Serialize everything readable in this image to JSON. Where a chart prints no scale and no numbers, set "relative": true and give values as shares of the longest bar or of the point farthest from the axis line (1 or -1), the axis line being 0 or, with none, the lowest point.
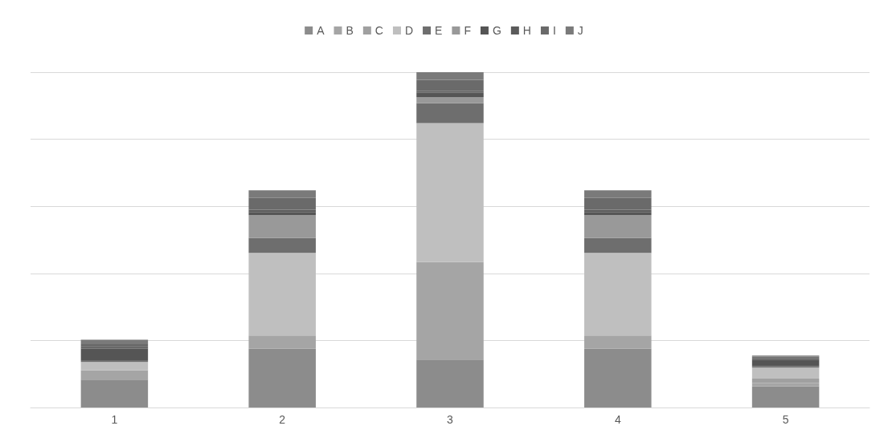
{
  "chart_data": {
    "type": "bar",
    "stacked": true,
    "relative": true,
    "grid": "y",
    "legend": "top",
    "categories": [
      "1",
      "2",
      "3",
      "4",
      "5"
    ],
    "series": [
      {
        "name": "A",
        "color": "#8c8c8c",
        "values": [
          0.083,
          0.175,
          0.143,
          0.175,
          0.063
        ]
      },
      {
        "name": "B",
        "color": "#a5a5a5",
        "values": [
          0.028,
          0.04,
          0.291,
          0.04,
          0.01
        ]
      },
      {
        "name": "C",
        "color": "#a0a0a0",
        "values": [
          0,
          0,
          0,
          0,
          0.013
        ]
      },
      {
        "name": "D",
        "color": "#bfbfbf",
        "values": [
          0.025,
          0.246,
          0.414,
          0.246,
          0.033
        ]
      },
      {
        "name": "E",
        "color": "#6e6e6e",
        "values": [
          0.005,
          0.045,
          0.06,
          0.045,
          0.005
        ]
      },
      {
        "name": "F",
        "color": "#999999",
        "values": [
          0,
          0.068,
          0.018,
          0.068,
          0
        ]
      },
      {
        "name": "G",
        "color": "#555555",
        "values": [
          0.035,
          0.008,
          0.013,
          0.008,
          0.018
        ]
      },
      {
        "name": "H",
        "color": "#5b5b5b",
        "values": [
          0.005,
          0.008,
          0.005,
          0.008,
          0.005
        ]
      },
      {
        "name": "I",
        "color": "#6a6a6a",
        "values": [
          0.008,
          0.035,
          0.033,
          0.035,
          0.005
        ]
      },
      {
        "name": "J",
        "color": "#7a7a7a",
        "values": [
          0.013,
          0.023,
          0.023,
          0.023,
          0.003
        ]
      }
    ]
  }
}
